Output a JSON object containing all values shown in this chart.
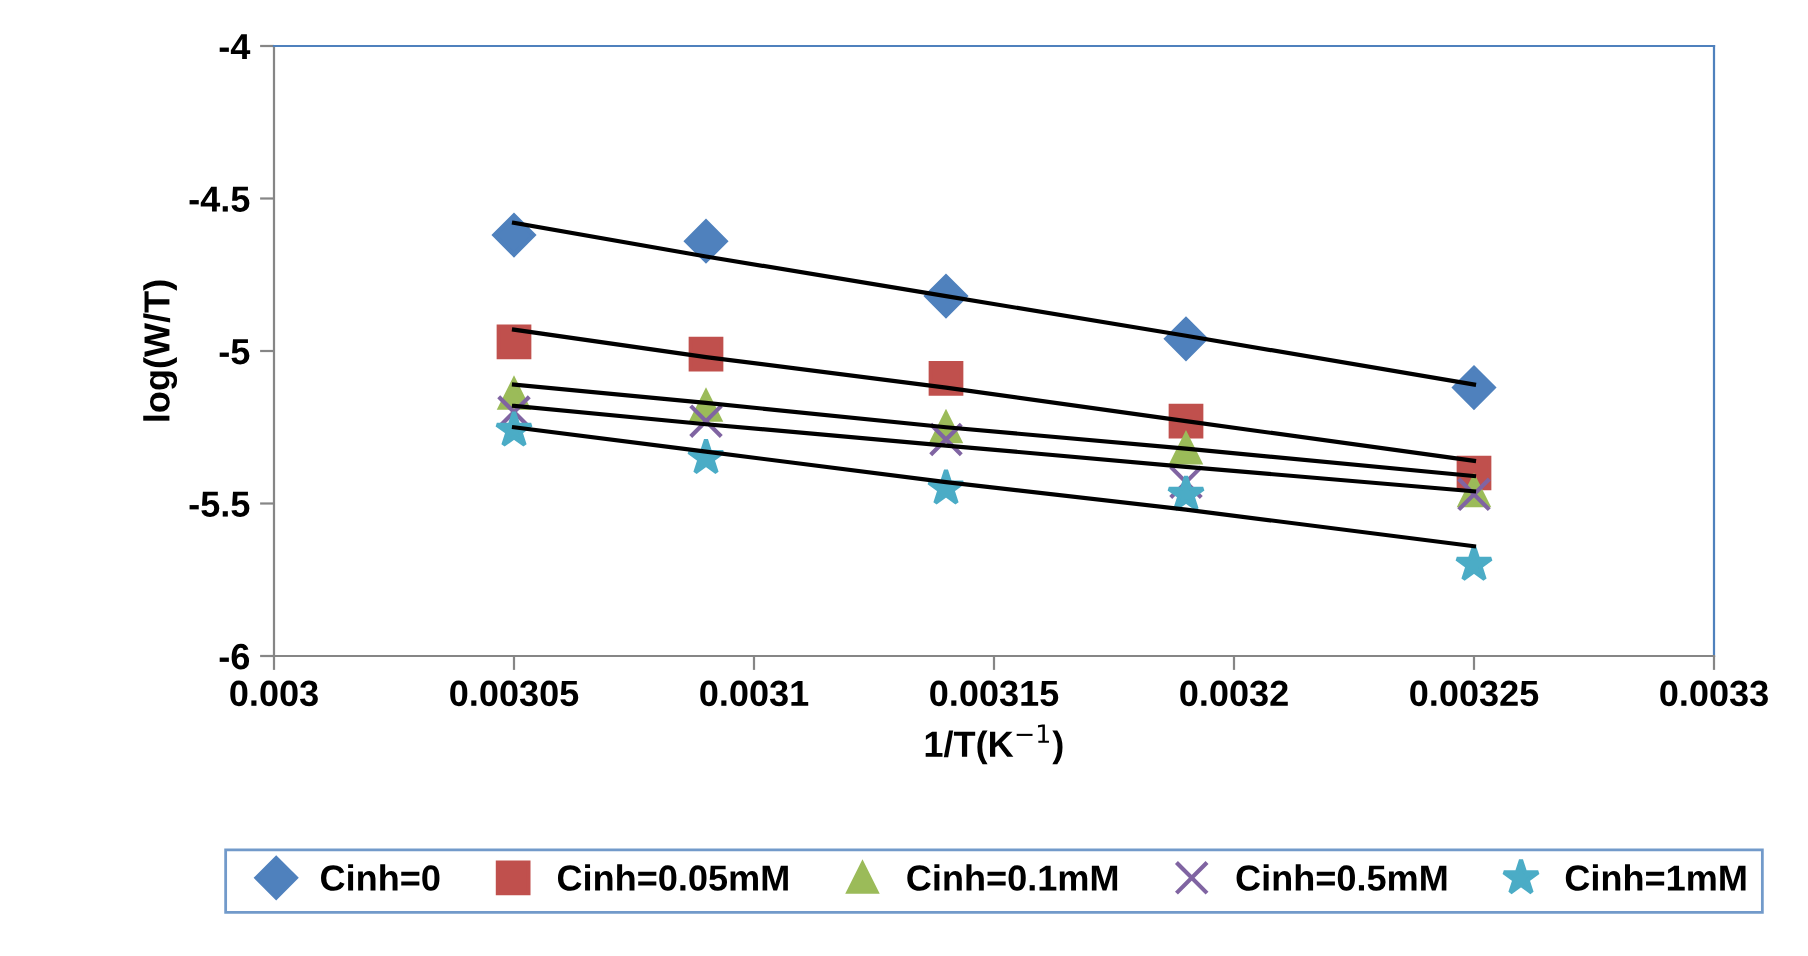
{
  "chart_data": {
    "type": "scatter",
    "xlabel": "1/T(K$^{−1}$)",
    "ylabel": "log(W/T)",
    "x": [
      0.00305,
      0.00309,
      0.00314,
      0.00319,
      0.00325
    ],
    "xlim": [
      0.003,
      0.0033
    ],
    "xticks": [
      0.003,
      0.00305,
      0.0031,
      0.00315,
      0.0032,
      0.00325,
      0.0033
    ],
    "ylim": [
      -6,
      -4
    ],
    "yticks": [
      -6,
      -5.5,
      -5,
      -4.5,
      -4
    ],
    "grid": false,
    "legend": "bottom",
    "series": [
      {
        "name": "Cinh=0",
        "color": "#4f81bd",
        "marker": "diamond",
        "values": [
          -4.62,
          -4.64,
          -4.82,
          -4.96,
          -5.12
        ]
      },
      {
        "name": "Cinh=0.05mM",
        "color": "#c0504d",
        "marker": "square",
        "values": [
          -4.97,
          -5.01,
          -5.09,
          -5.23,
          -5.4
        ]
      },
      {
        "name": "Cinh=0.1mM",
        "color": "#9bbb59",
        "marker": "triangle",
        "values": [
          -5.14,
          -5.18,
          -5.25,
          -5.32,
          -5.46
        ]
      },
      {
        "name": "Cinh=0.5mM",
        "color": "#8064a2",
        "marker": "cross",
        "values": [
          -5.2,
          -5.23,
          -5.29,
          -5.43,
          -5.47
        ]
      },
      {
        "name": "Cinh=1mM",
        "color": "#4bacc6",
        "marker": "star",
        "values": [
          -5.26,
          -5.35,
          -5.45,
          -5.47,
          -5.7
        ]
      },
      {
        "type": "line",
        "color": "#000000",
        "marker": "none",
        "values": [
          -4.58,
          -4.69,
          -4.82,
          -4.95,
          -5.11
        ]
      },
      {
        "type": "line",
        "color": "#000000",
        "marker": "none",
        "values": [
          -4.93,
          -5.02,
          -5.12,
          -5.23,
          -5.36
        ]
      },
      {
        "type": "line",
        "color": "#000000",
        "marker": "none",
        "values": [
          -5.11,
          -5.17,
          -5.25,
          -5.32,
          -5.41
        ]
      },
      {
        "type": "line",
        "color": "#000000",
        "marker": "none",
        "values": [
          -5.18,
          -5.24,
          -5.31,
          -5.38,
          -5.46
        ]
      },
      {
        "type": "line",
        "color": "#000000",
        "marker": "none",
        "values": [
          -5.25,
          -5.33,
          -5.43,
          -5.52,
          -5.64
        ]
      }
    ]
  }
}
